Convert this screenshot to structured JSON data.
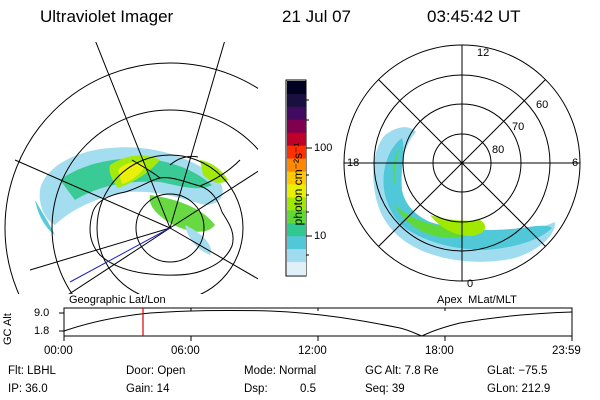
{
  "header": {
    "instrument": "Ultraviolet Imager",
    "date": "21 Jul 07",
    "time": "03:45:42 UT"
  },
  "colorbar": {
    "unit_label": "photon cm⁻²s⁻¹",
    "ticks": [
      "100",
      "10"
    ],
    "colors": [
      "#000020",
      "#1a1040",
      "#400a60",
      "#800050",
      "#c00028",
      "#ff3000",
      "#ff8800",
      "#ffc800",
      "#e8f000",
      "#a0e800",
      "#60d838",
      "#30c890",
      "#50c8d8",
      "#a0dcf0",
      "#e0f0f8"
    ]
  },
  "panels": {
    "geographic_label": "Geographic Lat/Lon",
    "apex_label": "Apex  MLat/MLT"
  },
  "apex_grid": {
    "lat_labels": [
      "80",
      "70",
      "60"
    ],
    "mlt_labels": [
      "12",
      "18",
      "6",
      "0"
    ]
  },
  "timeline": {
    "ylabel": "GC Alt",
    "ytick_top": "9.0",
    "ytick_bottom": "1.8",
    "xticks": [
      "00:00",
      "06:00",
      "12:00",
      "18:00",
      "23:59"
    ],
    "marker_time": "03:45:42"
  },
  "info": {
    "filter": "Flt: LBHL",
    "door": "Door: Open",
    "mode": "Mode: Normal",
    "gc_alt": "GC Alt: 7.8 Re",
    "glat": "GLat: −75.5",
    "ip": "IP: 36.0",
    "gain": "Gain: 14",
    "dsp_label": "Dsp:",
    "dsp_value": "0.5",
    "seq": "Seq: 39",
    "glon": "GLon: 212.9"
  },
  "colors": {
    "red_marker": "#e00000",
    "blue_line": "#2020c0"
  }
}
